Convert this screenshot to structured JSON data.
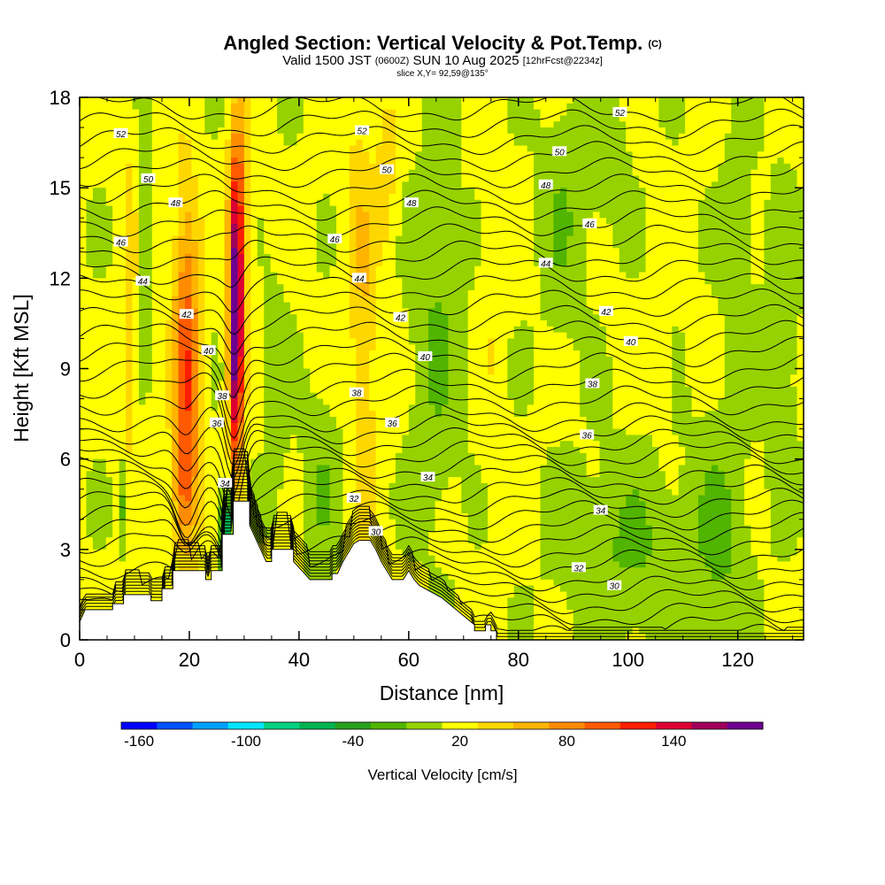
{
  "chart_data": {
    "type": "heatmap",
    "title": "Angled Section: Vertical Velocity & Pot.Temp.",
    "title_unit": "(C)",
    "subtitle_main_a": "Valid 1500 JST",
    "subtitle_utc": "(0600Z)",
    "subtitle_main_b": "SUN 10 Aug 2025",
    "subtitle_fcst": "[12hrFcst@2234z]",
    "slice_label": "slice X,Y= 92,59@135°",
    "xlabel": "Distance [nm]",
    "ylabel": "Height [Kft MSL]",
    "xlim": [
      0,
      132
    ],
    "ylim": [
      0,
      18
    ],
    "x_ticks": [
      0,
      20,
      40,
      60,
      80,
      100,
      120
    ],
    "y_ticks": [
      0,
      3,
      6,
      9,
      12,
      15,
      18
    ],
    "x_tick_labels": [
      "0",
      "20",
      "40",
      "60",
      "80",
      "100",
      "120"
    ],
    "y_tick_labels": [
      "0",
      "3",
      "6",
      "9",
      "12",
      "15",
      "18"
    ],
    "colorbar": {
      "label": "Vertical Velocity [cm/s]",
      "tick_values": [
        -160,
        -100,
        -40,
        20,
        80,
        140
      ],
      "tick_labels": [
        "-160",
        "-100",
        "-40",
        "20",
        "80",
        "140"
      ],
      "range": [
        -170,
        190
      ],
      "step": 20,
      "colors": [
        "#0000ff",
        "#0050ff",
        "#00a0ff",
        "#00e6ff",
        "#00d280",
        "#00b450",
        "#28a01e",
        "#50b400",
        "#96d200",
        "#ffff00",
        "#ffd700",
        "#ffb400",
        "#ff8c00",
        "#ff5a00",
        "#ff1e00",
        "#dc0032",
        "#a0005a",
        "#6e0090"
      ]
    },
    "terrain": [
      [
        0,
        0.6
      ],
      [
        1,
        1.0
      ],
      [
        6,
        1.0
      ],
      [
        6,
        1.2
      ],
      [
        8,
        1.2
      ],
      [
        8,
        1.5
      ],
      [
        13,
        1.5
      ],
      [
        13,
        1.3
      ],
      [
        15,
        1.3
      ],
      [
        15,
        1.7
      ],
      [
        17,
        1.7
      ],
      [
        17,
        2.3
      ],
      [
        23,
        2.3
      ],
      [
        23,
        2.0
      ],
      [
        24,
        2.0
      ],
      [
        24,
        2.3
      ],
      [
        26,
        2.3
      ],
      [
        26,
        3.5
      ],
      [
        28,
        3.5
      ],
      [
        28,
        4.6
      ],
      [
        31,
        4.6
      ],
      [
        31,
        3.8
      ],
      [
        33,
        3.0
      ],
      [
        34,
        2.6
      ],
      [
        35,
        2.6
      ],
      [
        35,
        3.0
      ],
      [
        39,
        3.0
      ],
      [
        39,
        2.6
      ],
      [
        40,
        2.4
      ],
      [
        41,
        2.2
      ],
      [
        42,
        2.0
      ],
      [
        46,
        2.0
      ],
      [
        46,
        2.2
      ],
      [
        47,
        2.2
      ],
      [
        48,
        2.6
      ],
      [
        49,
        2.9
      ],
      [
        50,
        3.2
      ],
      [
        51,
        3.3
      ],
      [
        53,
        3.3
      ],
      [
        54,
        3.0
      ],
      [
        55,
        2.6
      ],
      [
        56,
        2.3
      ],
      [
        57,
        2.0
      ],
      [
        59,
        2.0
      ],
      [
        60,
        2.3
      ],
      [
        61,
        2.0
      ],
      [
        62,
        1.8
      ],
      [
        64,
        1.6
      ],
      [
        66,
        1.4
      ],
      [
        68,
        1.1
      ],
      [
        70,
        0.8
      ],
      [
        72,
        0.5
      ],
      [
        72,
        0.3
      ],
      [
        74,
        0.3
      ],
      [
        74,
        0.5
      ],
      [
        75,
        0.5
      ],
      [
        75,
        0.3
      ],
      [
        76,
        0.3
      ],
      [
        76,
        0
      ],
      [
        0,
        0
      ]
    ],
    "isentropes": [
      30,
      32,
      34,
      36,
      38,
      40,
      42,
      44,
      46,
      48,
      50,
      52
    ],
    "isentrope_labels": [
      {
        "text": "52",
        "x": 7.5,
        "y": 16.8
      },
      {
        "text": "50",
        "x": 12.5,
        "y": 15.3
      },
      {
        "text": "48",
        "x": 17.5,
        "y": 14.5
      },
      {
        "text": "46",
        "x": 7.5,
        "y": 13.2
      },
      {
        "text": "44",
        "x": 11.5,
        "y": 11.9
      },
      {
        "text": "42",
        "x": 19.5,
        "y": 10.8
      },
      {
        "text": "40",
        "x": 23.5,
        "y": 9.6
      },
      {
        "text": "38",
        "x": 26,
        "y": 8.1
      },
      {
        "text": "36",
        "x": 25,
        "y": 7.2
      },
      {
        "text": "34",
        "x": 26.5,
        "y": 5.2
      },
      {
        "text": "52",
        "x": 51.5,
        "y": 16.9
      },
      {
        "text": "50",
        "x": 56,
        "y": 15.6
      },
      {
        "text": "48",
        "x": 60.5,
        "y": 14.5
      },
      {
        "text": "46",
        "x": 46.5,
        "y": 13.3
      },
      {
        "text": "44",
        "x": 51,
        "y": 12.0
      },
      {
        "text": "42",
        "x": 58.5,
        "y": 10.7
      },
      {
        "text": "40",
        "x": 63,
        "y": 9.4
      },
      {
        "text": "38",
        "x": 50.5,
        "y": 8.2
      },
      {
        "text": "36",
        "x": 57,
        "y": 7.2
      },
      {
        "text": "34",
        "x": 63.5,
        "y": 5.4
      },
      {
        "text": "32",
        "x": 50,
        "y": 4.7
      },
      {
        "text": "30",
        "x": 54,
        "y": 3.6
      },
      {
        "text": "52",
        "x": 98.5,
        "y": 17.5
      },
      {
        "text": "50",
        "x": 87.5,
        "y": 16.2
      },
      {
        "text": "48",
        "x": 85,
        "y": 15.1
      },
      {
        "text": "46",
        "x": 93,
        "y": 13.8
      },
      {
        "text": "44",
        "x": 85,
        "y": 12.5
      },
      {
        "text": "42",
        "x": 96,
        "y": 10.9
      },
      {
        "text": "40",
        "x": 100.5,
        "y": 9.9
      },
      {
        "text": "38",
        "x": 93.5,
        "y": 8.5
      },
      {
        "text": "36",
        "x": 92.5,
        "y": 6.8
      },
      {
        "text": "34",
        "x": 95,
        "y": 4.3
      },
      {
        "text": "32",
        "x": 91,
        "y": 2.4
      },
      {
        "text": "30",
        "x": 97.5,
        "y": 1.8
      }
    ]
  }
}
